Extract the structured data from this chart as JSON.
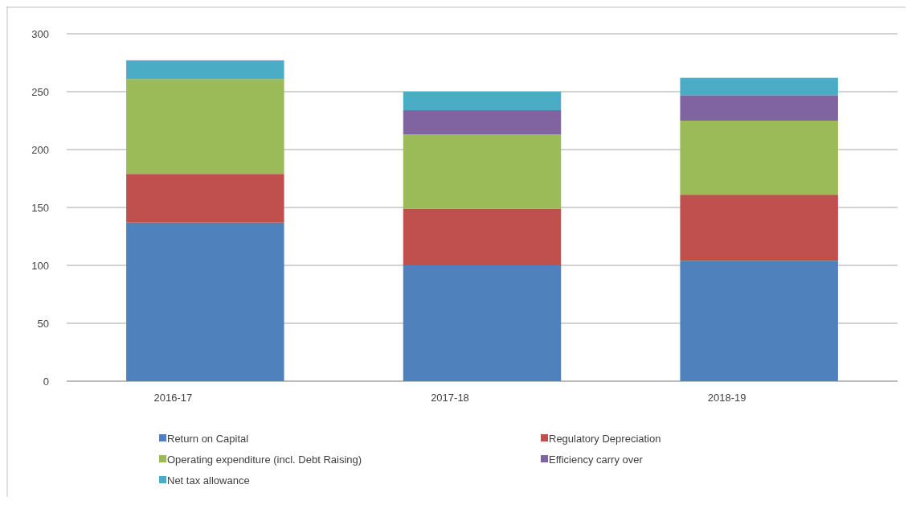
{
  "chart_data": {
    "type": "bar",
    "stacked": true,
    "categories": [
      "2016-17",
      "2017-18",
      "2018-19"
    ],
    "series": [
      {
        "name": "Return on Capital",
        "color": "#4f81bd",
        "values": [
          137,
          100,
          104
        ]
      },
      {
        "name": "Regulatory Depreciation",
        "color": "#c0504d",
        "values": [
          42,
          49,
          57
        ]
      },
      {
        "name": "Operating expenditure (incl. Debt Raising)",
        "color": "#9bbb59",
        "values": [
          82,
          64,
          64
        ]
      },
      {
        "name": "Efficiency carry over",
        "color": "#8064a2",
        "values": [
          0,
          21,
          22
        ]
      },
      {
        "name": "Net tax allowance",
        "color": "#4bacc6",
        "values": [
          16,
          16,
          15
        ]
      }
    ],
    "ylim": [
      0,
      300
    ],
    "yticks": [
      0,
      50,
      100,
      150,
      200,
      250,
      300
    ],
    "grid": "y",
    "legend": "bottom"
  }
}
